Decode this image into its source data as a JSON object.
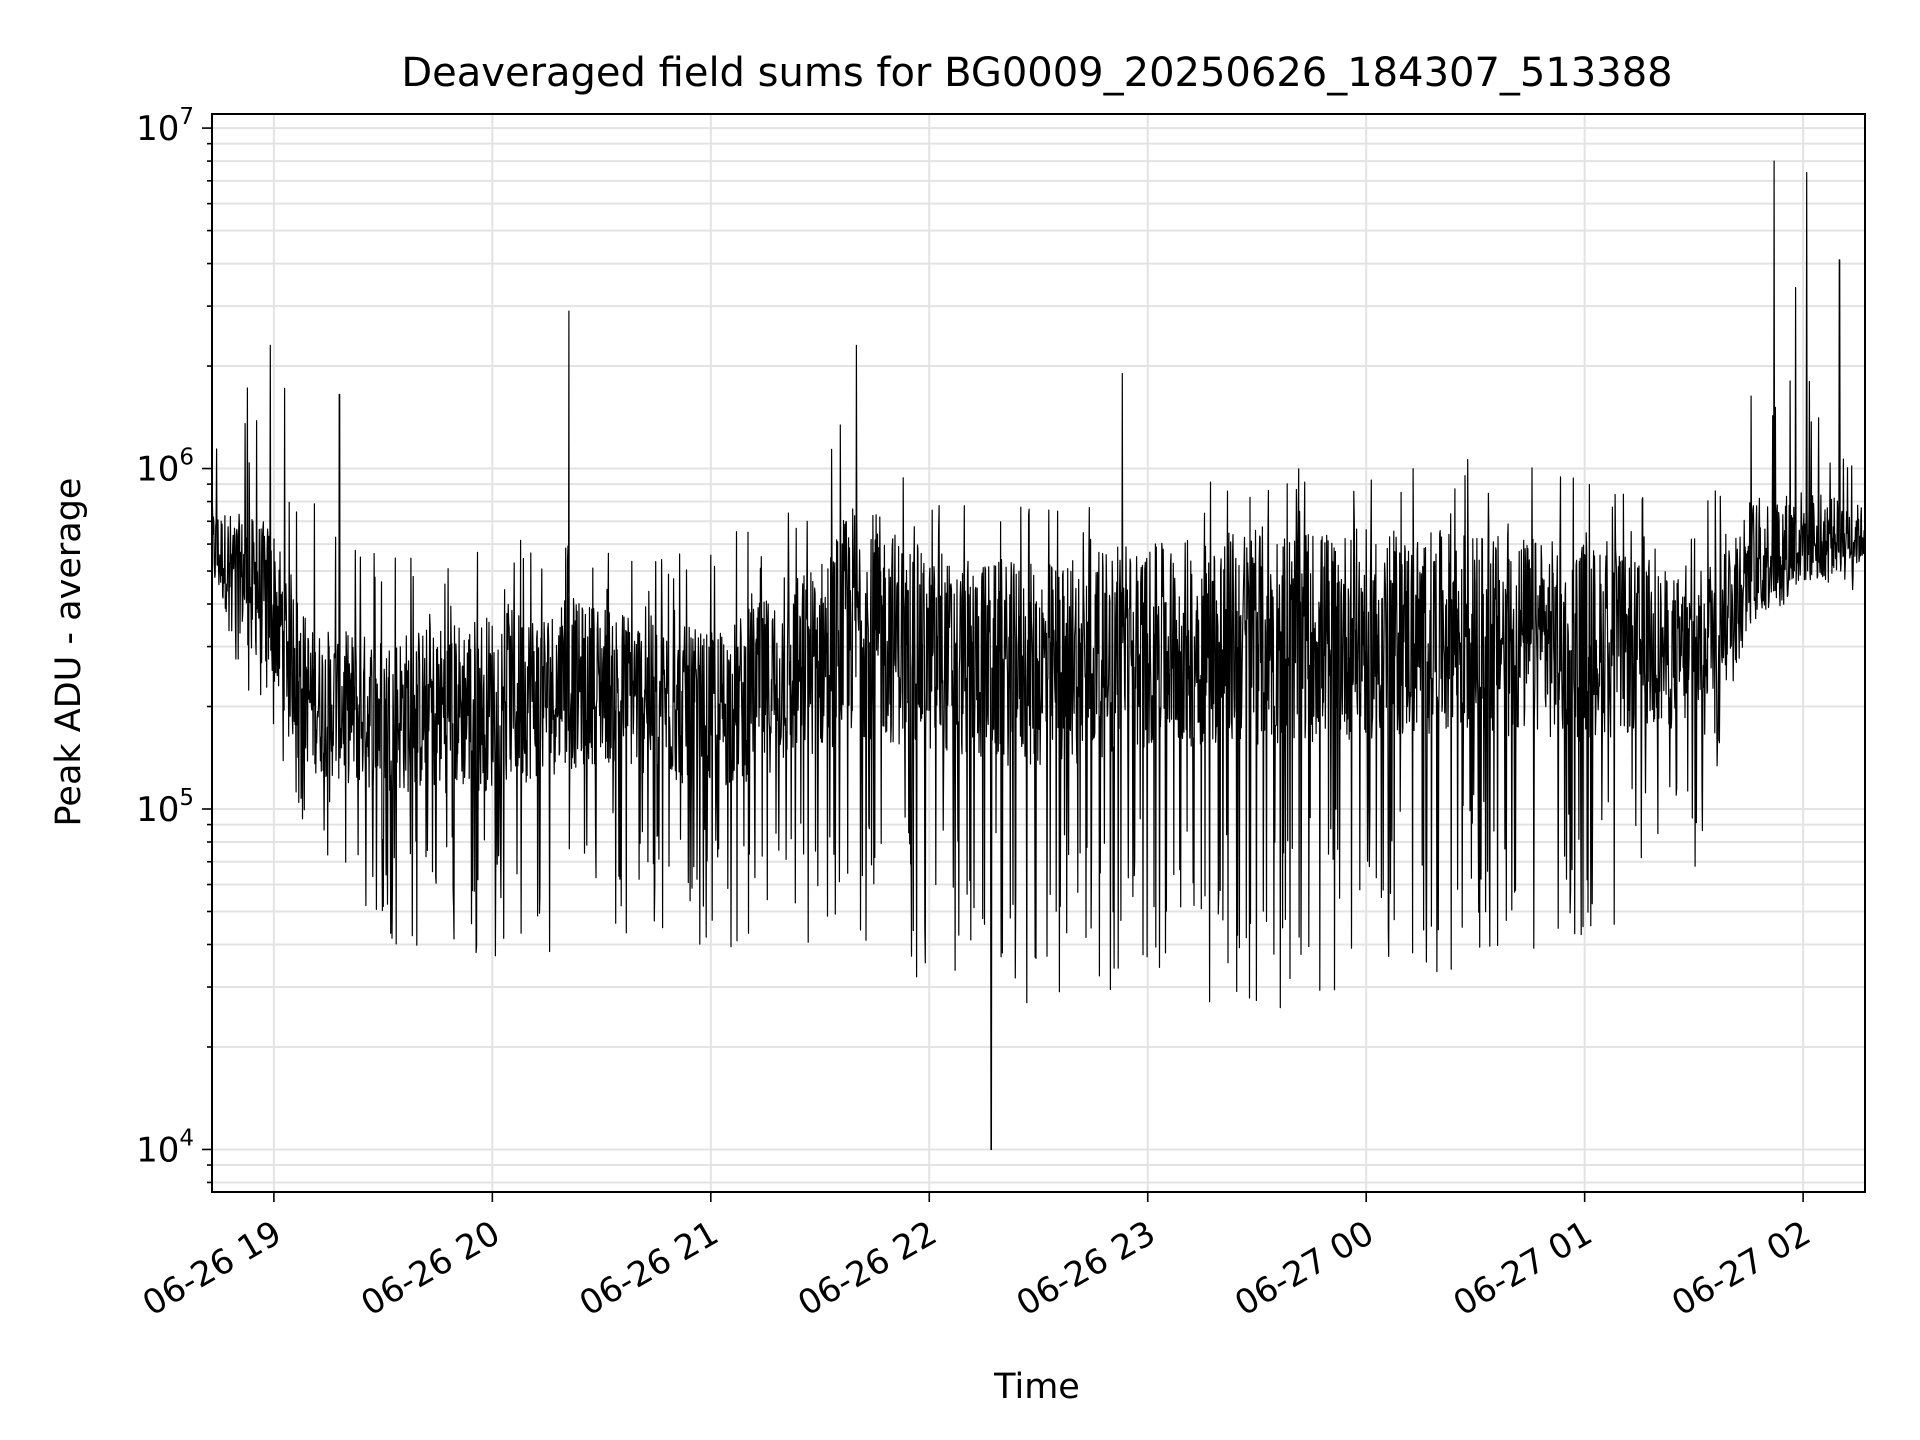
{
  "chart_data": {
    "type": "line",
    "title": "Deaveraged field sums for BG0009_20250626_184307_513388",
    "xlabel": "Time",
    "ylabel": "Peak ADU - average",
    "x_axis": {
      "kind": "time",
      "range": [
        "2025-06-26 18:43",
        "2025-06-27 02:17"
      ],
      "ticks": [
        {
          "value": "2025-06-26 19:00",
          "label": "06-26 19"
        },
        {
          "value": "2025-06-26 20:00",
          "label": "06-26 20"
        },
        {
          "value": "2025-06-26 21:00",
          "label": "06-26 21"
        },
        {
          "value": "2025-06-26 22:00",
          "label": "06-26 22"
        },
        {
          "value": "2025-06-26 23:00",
          "label": "06-26 23"
        },
        {
          "value": "2025-06-27 00:00",
          "label": "06-27 00"
        },
        {
          "value": "2025-06-27 01:00",
          "label": "06-27 01"
        },
        {
          "value": "2025-06-27 02:00",
          "label": "06-27 02"
        }
      ]
    },
    "y_axis": {
      "scale": "log",
      "range": [
        7500,
        11000000
      ],
      "ticks": [
        {
          "value": 10000,
          "base": "10",
          "exp": "4"
        },
        {
          "value": 100000,
          "base": "10",
          "exp": "5"
        },
        {
          "value": 1000000,
          "base": "10",
          "exp": "6"
        },
        {
          "value": 10000000,
          "base": "10",
          "exp": "7"
        }
      ]
    },
    "grid": true,
    "line_color": "#000000",
    "grid_color": "#e3e3e3",
    "series_envelope": [
      {
        "x": "2025-06-26 18:43",
        "typical": 600000,
        "low": 350000,
        "high": 1400000
      },
      {
        "x": "2025-06-26 19:00",
        "typical": 420000,
        "low": 150000,
        "high": 2300000
      },
      {
        "x": "2025-06-26 19:10",
        "typical": 220000,
        "low": 80000,
        "high": 900000
      },
      {
        "x": "2025-06-26 19:30",
        "typical": 200000,
        "low": 40000,
        "high": 600000
      },
      {
        "x": "2025-06-26 20:00",
        "typical": 220000,
        "low": 35000,
        "high": 700000
      },
      {
        "x": "2025-06-26 20:30",
        "typical": 250000,
        "low": 40000,
        "high": 600000
      },
      {
        "x": "2025-06-26 21:00",
        "typical": 200000,
        "low": 40000,
        "high": 600000
      },
      {
        "x": "2025-06-26 21:30",
        "typical": 300000,
        "low": 35000,
        "high": 900000
      },
      {
        "x": "2025-06-26 21:40",
        "typical": 400000,
        "low": 40000,
        "high": 2200000
      },
      {
        "x": "2025-06-26 22:00",
        "typical": 300000,
        "low": 30000,
        "high": 800000
      },
      {
        "x": "2025-06-26 22:30",
        "typical": 280000,
        "low": 25000,
        "high": 800000
      },
      {
        "x": "2025-06-26 23:00",
        "typical": 320000,
        "low": 30000,
        "high": 900000
      },
      {
        "x": "2025-06-26 23:30",
        "typical": 350000,
        "low": 25000,
        "high": 1000000
      },
      {
        "x": "2025-06-27 00:00",
        "typical": 350000,
        "low": 30000,
        "high": 1000000
      },
      {
        "x": "2025-06-27 00:30",
        "typical": 350000,
        "low": 35000,
        "high": 1100000
      },
      {
        "x": "2025-06-27 01:00",
        "typical": 330000,
        "low": 35000,
        "high": 1000000
      },
      {
        "x": "2025-06-27 01:30",
        "typical": 300000,
        "low": 60000,
        "high": 700000
      },
      {
        "x": "2025-06-27 01:45",
        "typical": 550000,
        "low": 350000,
        "high": 3000000
      },
      {
        "x": "2025-06-27 02:00",
        "typical": 650000,
        "low": 400000,
        "high": 2000000
      },
      {
        "x": "2025-06-27 02:17",
        "typical": 650000,
        "low": 450000,
        "high": 1200000
      }
    ],
    "notable_points": [
      {
        "x": "2025-06-26 18:59",
        "y": 2300000
      },
      {
        "x": "2025-06-26 19:18",
        "y": 1650000
      },
      {
        "x": "2025-06-26 20:21",
        "y": 2900000
      },
      {
        "x": "2025-06-26 21:40",
        "y": 2300000
      },
      {
        "x": "2025-06-26 22:17",
        "y": 10000
      },
      {
        "x": "2025-06-26 22:53",
        "y": 1900000
      },
      {
        "x": "2025-06-27 01:52",
        "y": 8000000
      },
      {
        "x": "2025-06-27 01:58",
        "y": 3400000
      },
      {
        "x": "2025-06-27 02:01",
        "y": 7400000
      },
      {
        "x": "2025-06-27 02:10",
        "y": 4100000
      }
    ]
  }
}
